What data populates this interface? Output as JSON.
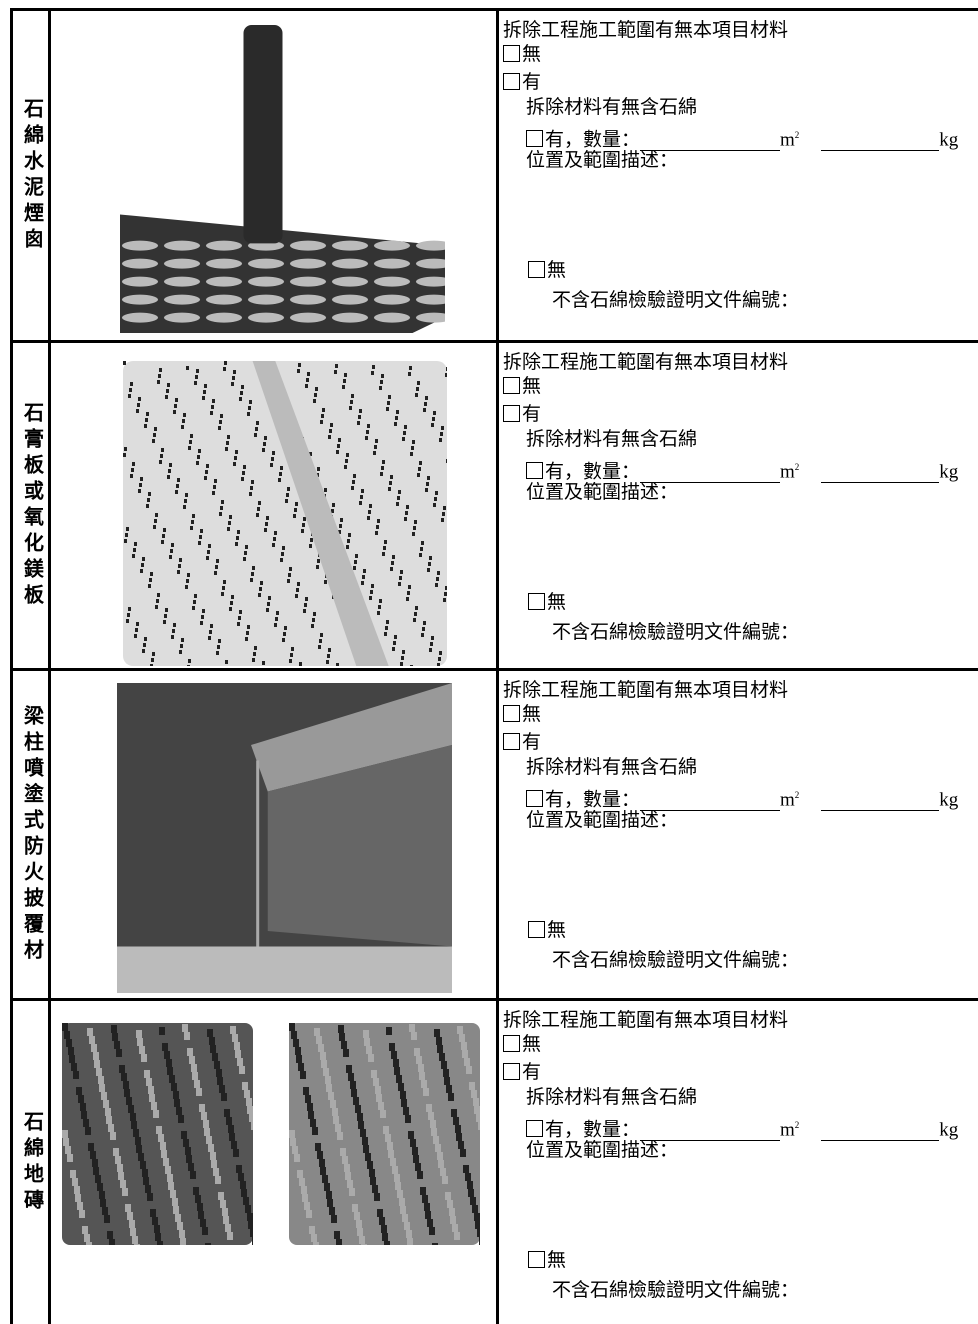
{
  "rows": [
    {
      "label": "石綿水泥煙囪",
      "question": "拆除工程施工範圍有無本項目材料",
      "option_no": "無",
      "option_yes": "有",
      "asbestos_question": "拆除材料有無含石綿",
      "asbestos_yes": "有，數量：",
      "unit_area": "m",
      "unit_area_exp": "2",
      "unit_weight": "kg",
      "location": "位置及範圍描述：",
      "asbestos_no": "無",
      "certificate": "不含石綿檢驗證明文件編號："
    },
    {
      "label": "石膏板或氧化鎂板",
      "question": "拆除工程施工範圍有無本項目材料",
      "option_no": "無",
      "option_yes": "有",
      "asbestos_question": "拆除材料有無含石綿",
      "asbestos_yes": "有，數量：",
      "unit_area": "m",
      "unit_area_exp": "2",
      "unit_weight": "kg",
      "location": "位置及範圍描述：",
      "asbestos_no": "無",
      "certificate": "不含石綿檢驗證明文件編號："
    },
    {
      "label": "梁柱噴塗式防火披覆材",
      "question": "拆除工程施工範圍有無本項目材料",
      "option_no": "無",
      "option_yes": "有",
      "asbestos_question": "拆除材料有無含石綿",
      "asbestos_yes": "有，數量：",
      "unit_area": "m",
      "unit_area_exp": "2",
      "unit_weight": "kg",
      "location": "位置及範圍描述：",
      "asbestos_no": "無",
      "certificate": "不含石綿檢驗證明文件編號："
    },
    {
      "label": "石綿地磚",
      "question": "拆除工程施工範圍有無本項目材料",
      "option_no": "無",
      "option_yes": "有",
      "asbestos_question": "拆除材料有無含石綿",
      "asbestos_yes": "有，數量：",
      "unit_area": "m",
      "unit_area_exp": "2",
      "unit_weight": "kg",
      "location": "位置及範圍描述：",
      "asbestos_no": "無",
      "certificate": "不含石綿檢驗證明文件編號："
    }
  ]
}
